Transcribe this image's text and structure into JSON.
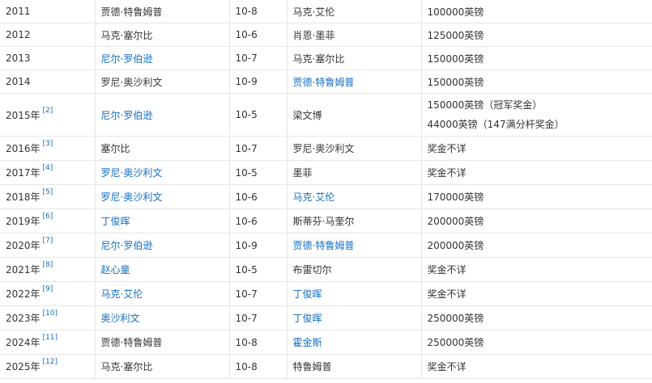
{
  "link_color": "#136ec2",
  "rows": [
    {
      "year": "2011",
      "ref": "",
      "winner": "贾德·特鲁姆普",
      "winner_link": false,
      "score": "10-8",
      "runner": "马克·艾伦",
      "runner_link": false,
      "prize": [
        "100000英镑"
      ]
    },
    {
      "year": "2012",
      "ref": "",
      "winner": "马克·塞尔比",
      "winner_link": false,
      "score": "10-6",
      "runner": "肖恩·墨菲",
      "runner_link": false,
      "prize": [
        "125000英镑"
      ]
    },
    {
      "year": "2013",
      "ref": "",
      "winner": "尼尔·罗伯逊",
      "winner_link": true,
      "score": "10-7",
      "runner": "马克·塞尔比",
      "runner_link": false,
      "prize": [
        "150000英镑"
      ]
    },
    {
      "year": "2014",
      "ref": "",
      "winner": "罗尼·奥沙利文",
      "winner_link": false,
      "score": "10-9",
      "runner": "贾德·特鲁姆普",
      "runner_link": true,
      "prize": [
        "150000英镑"
      ]
    },
    {
      "year": "2015年",
      "ref": "[2]",
      "winner": "尼尔·罗伯逊",
      "winner_link": true,
      "score": "10-5",
      "runner": "梁文博",
      "runner_link": false,
      "prize": [
        "150000英镑（冠军奖金）",
        "44000英镑（147满分杆奖金）"
      ]
    },
    {
      "year": "2016年",
      "ref": "[3]",
      "winner": "塞尔比",
      "winner_link": false,
      "score": "10-7",
      "runner": "罗尼·奥沙利文",
      "runner_link": false,
      "prize": [
        "奖金不详"
      ]
    },
    {
      "year": "2017年",
      "ref": "[4]",
      "winner": "罗尼·奥沙利文",
      "winner_link": true,
      "score": "10-5",
      "runner": "墨菲",
      "runner_link": false,
      "prize": [
        "奖金不详"
      ]
    },
    {
      "year": "2018年",
      "ref": "[5]",
      "winner": "罗尼·奥沙利文",
      "winner_link": true,
      "score": "10-6",
      "runner": "马克·艾伦",
      "runner_link": true,
      "prize": [
        "170000英镑"
      ]
    },
    {
      "year": "2019年",
      "ref": "[6]",
      "winner": "丁俊晖",
      "winner_link": true,
      "score": "10-6",
      "runner": "斯蒂芬·马奎尔",
      "runner_link": false,
      "prize": [
        "200000英镑"
      ]
    },
    {
      "year": "2020年",
      "ref": "[7]",
      "winner": "尼尔·罗伯逊",
      "winner_link": true,
      "score": "10-9",
      "runner": "贾德·特鲁姆普",
      "runner_link": true,
      "prize": [
        "200000英镑"
      ]
    },
    {
      "year": "2021年",
      "ref": "[8]",
      "winner": "赵心童",
      "winner_link": true,
      "score": "10-5",
      "runner": "布雷切尔",
      "runner_link": false,
      "prize": [
        "奖金不详"
      ]
    },
    {
      "year": "2022年",
      "ref": "[9]",
      "winner": "马克·艾伦",
      "winner_link": true,
      "score": "10-7",
      "runner": "丁俊晖",
      "runner_link": true,
      "prize": [
        "奖金不详"
      ]
    },
    {
      "year": "2023年",
      "ref": "[10]",
      "winner": "奥沙利文",
      "winner_link": true,
      "score": "10-7",
      "runner": "丁俊晖",
      "runner_link": true,
      "prize": [
        "250000英镑"
      ]
    },
    {
      "year": "2024年",
      "ref": "[11]",
      "winner": "贾德·特鲁姆普",
      "winner_link": false,
      "score": "10-8",
      "runner": "霍金斯",
      "runner_link": true,
      "prize": [
        "250000英镑"
      ]
    },
    {
      "year": "2025年",
      "ref": "[12]",
      "winner": "马克·塞尔比",
      "winner_link": false,
      "score": "10-8",
      "runner": "特鲁姆普",
      "runner_link": false,
      "prize": [
        "奖金不详"
      ]
    }
  ]
}
